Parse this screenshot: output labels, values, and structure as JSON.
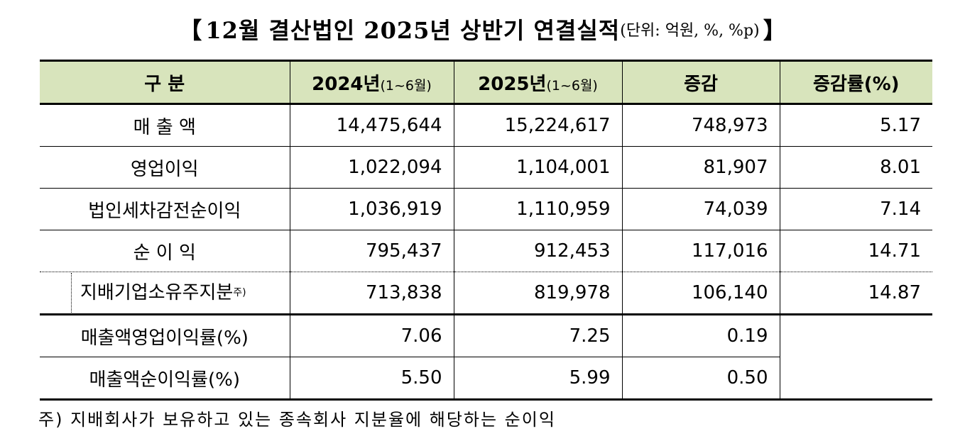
{
  "title": {
    "open_bracket": "【",
    "main": "12월 결산법인 2025년 상반기 연결실적",
    "unit": "(단위: 억원, %, %p)",
    "close_bracket": "】"
  },
  "table": {
    "headers": {
      "category": "구  분",
      "y2024": "2024년",
      "y2024_sub": "(1~6월)",
      "y2025": "2025년",
      "y2025_sub": "(1~6월)",
      "change": "증감",
      "change_rate": "증감률(%)"
    },
    "rows": [
      {
        "label": "매 출 액",
        "y2024": "14,475,644",
        "y2025": "15,224,617",
        "change": "748,973",
        "rate": "5.17"
      },
      {
        "label": "영업이익",
        "y2024": "1,022,094",
        "y2025": "1,104,001",
        "change": "81,907",
        "rate": "8.01"
      },
      {
        "label": "법인세차감전순이익",
        "y2024": "1,036,919",
        "y2025": "1,110,959",
        "change": "74,039",
        "rate": "7.14"
      },
      {
        "label": "순 이 익",
        "y2024": "795,437",
        "y2025": "912,453",
        "change": "117,016",
        "rate": "14.71"
      },
      {
        "label": "지배기업소유주지분",
        "note_mark": "주)",
        "y2024": "713,838",
        "y2025": "819,978",
        "change": "106,140",
        "rate": "14.87"
      },
      {
        "label": "매출액영업이익률(%)",
        "y2024": "7.06",
        "y2025": "7.25",
        "change": "0.19"
      },
      {
        "label": "매출액순이익률(%)",
        "y2024": "5.50",
        "y2025": "5.99",
        "change": "0.50"
      }
    ]
  },
  "footnote": "주) 지배회사가 보유하고 있는 종속회사 지분율에 해당하는 순이익"
}
